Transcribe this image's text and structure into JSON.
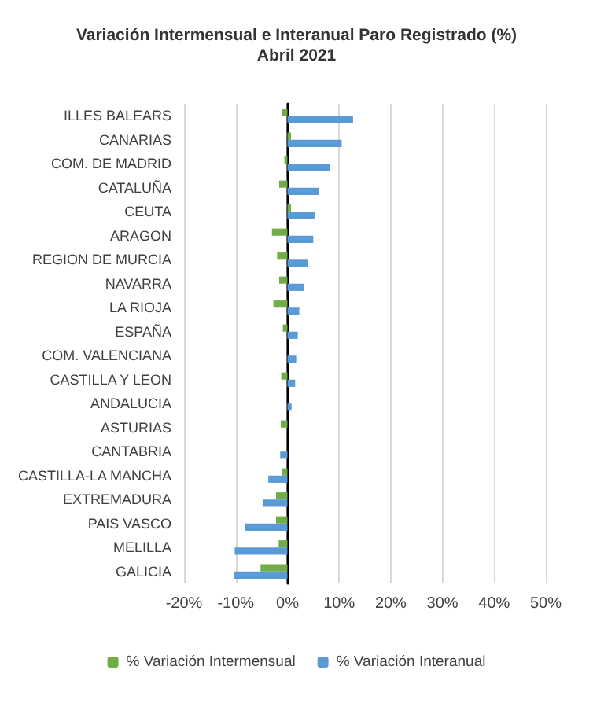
{
  "chart_data": {
    "type": "bar",
    "orientation": "horizontal",
    "title": "Variación Intermensual e Interanual Paro Registrado (%)",
    "subtitle": "Abril 2021",
    "categories": [
      "ILLES BALEARS",
      "CANARIAS",
      "COM. DE MADRID",
      "CATALUÑA",
      "CEUTA",
      "ARAGON",
      "REGION DE MURCIA",
      "NAVARRA",
      "LA RIOJA",
      "ESPAÑA",
      "COM. VALENCIANA",
      "CASTILLA Y LEON",
      "ANDALUCIA",
      "ASTURIAS",
      "CANTABRIA",
      "CASTILLA-LA MANCHA",
      "EXTREMADURA",
      "PAIS VASCO",
      "MELILLA",
      "GALICIA"
    ],
    "series": [
      {
        "name": "% Variación Intermensual",
        "color": "#70ad47",
        "values": [
          -1.1,
          0.7,
          -0.6,
          -1.6,
          0.7,
          -3.0,
          -2.0,
          -1.6,
          -2.7,
          -0.9,
          0.0,
          -1.2,
          0.0,
          -1.3,
          0.0,
          -1.1,
          -2.2,
          -2.2,
          -1.7,
          -5.2
        ]
      },
      {
        "name": "% Variación Interanual",
        "color": "#5b9bd5",
        "values": [
          12.7,
          10.5,
          8.2,
          6.1,
          5.4,
          5.0,
          4.0,
          3.2,
          2.3,
          2.0,
          1.7,
          1.5,
          0.8,
          0.0,
          -1.4,
          -3.7,
          -4.8,
          -8.2,
          -10.2,
          -10.4
        ]
      }
    ],
    "xlim": [
      -20,
      50
    ],
    "xticks": [
      {
        "value": -20,
        "label": "-20%"
      },
      {
        "value": -10,
        "label": "-10%"
      },
      {
        "value": 0,
        "label": "0%"
      },
      {
        "value": 10,
        "label": "10%"
      },
      {
        "value": 20,
        "label": "20%"
      },
      {
        "value": 30,
        "label": "30%"
      },
      {
        "value": 40,
        "label": "40%"
      },
      {
        "value": 50,
        "label": "50%"
      }
    ],
    "grid": "x",
    "legend": "bottom"
  }
}
